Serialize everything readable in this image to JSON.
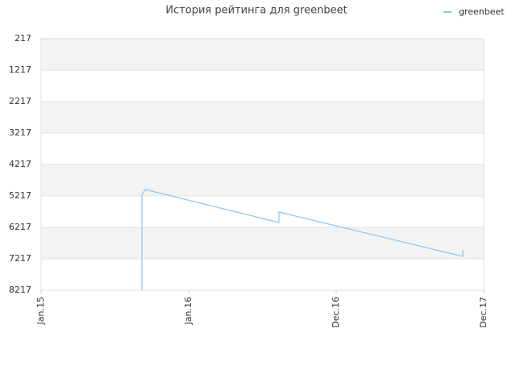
{
  "chart_data": {
    "type": "line",
    "title": "История рейтинга для greenbeet",
    "ylim": [
      217,
      8217
    ],
    "y_inverted": true,
    "yticks": [
      217,
      1217,
      2217,
      3217,
      4217,
      5217,
      6217,
      7217,
      8217
    ],
    "xlim": [
      0,
      3
    ],
    "xticks": [
      {
        "value": 0,
        "label": "Jan.15"
      },
      {
        "value": 1,
        "label": "Jan.16"
      },
      {
        "value": 2,
        "label": "Dec.16"
      },
      {
        "value": 3,
        "label": "Dec.17"
      }
    ],
    "grid": true,
    "legend": "top-right",
    "series": [
      {
        "name": "greenbeet",
        "color": "#88c4ee",
        "x": [
          0.683,
          0.683,
          0.705,
          1.612,
          1.612,
          2.858,
          2.858
        ],
        "values": [
          8217,
          5191,
          5012,
          6063,
          5730,
          7140,
          6935
        ]
      }
    ]
  }
}
